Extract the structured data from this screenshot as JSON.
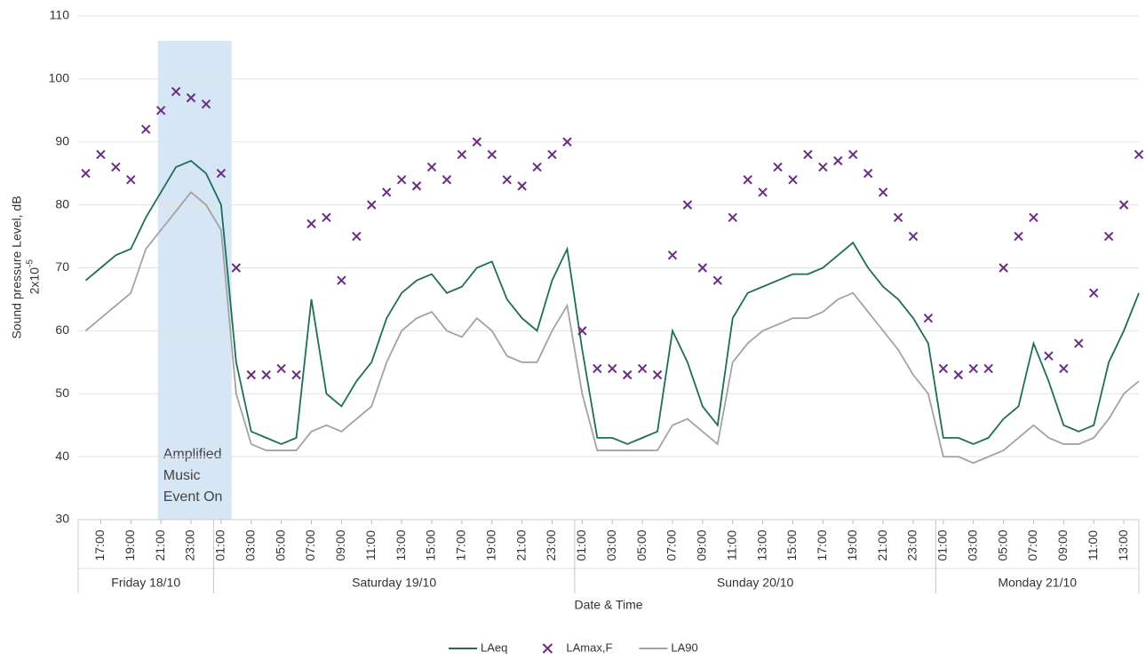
{
  "chart_data": {
    "type": "line",
    "x_label": "Date & Time",
    "y_label": "Sound pressure Level, dB",
    "y_label_unit": "2x10",
    "y_label_unit_exponent": "-5",
    "xlim": [
      15.5,
      86
    ],
    "ylim": [
      30,
      110
    ],
    "yticks": [
      30,
      40,
      50,
      60,
      70,
      80,
      90,
      100,
      110
    ],
    "grid": true,
    "xticks": [
      {
        "value": 17,
        "label": "17:00"
      },
      {
        "value": 19,
        "label": "19:00"
      },
      {
        "value": 21,
        "label": "21:00"
      },
      {
        "value": 23,
        "label": "23:00"
      },
      {
        "value": 25,
        "label": "01:00"
      },
      {
        "value": 27,
        "label": "03:00"
      },
      {
        "value": 29,
        "label": "05:00"
      },
      {
        "value": 31,
        "label": "07:00"
      },
      {
        "value": 33,
        "label": "09:00"
      },
      {
        "value": 35,
        "label": "11:00"
      },
      {
        "value": 37,
        "label": "13:00"
      },
      {
        "value": 39,
        "label": "15:00"
      },
      {
        "value": 41,
        "label": "17:00"
      },
      {
        "value": 43,
        "label": "19:00"
      },
      {
        "value": 45,
        "label": "21:00"
      },
      {
        "value": 47,
        "label": "23:00"
      },
      {
        "value": 49,
        "label": "01:00"
      },
      {
        "value": 51,
        "label": "03:00"
      },
      {
        "value": 53,
        "label": "05:00"
      },
      {
        "value": 55,
        "label": "07:00"
      },
      {
        "value": 57,
        "label": "09:00"
      },
      {
        "value": 59,
        "label": "11:00"
      },
      {
        "value": 61,
        "label": "13:00"
      },
      {
        "value": 63,
        "label": "15:00"
      },
      {
        "value": 65,
        "label": "17:00"
      },
      {
        "value": 67,
        "label": "19:00"
      },
      {
        "value": 69,
        "label": "21:00"
      },
      {
        "value": 71,
        "label": "23:00"
      },
      {
        "value": 73,
        "label": "01:00"
      },
      {
        "value": 75,
        "label": "03:00"
      },
      {
        "value": 77,
        "label": "05:00"
      },
      {
        "value": 79,
        "label": "07:00"
      },
      {
        "value": 81,
        "label": "09:00"
      },
      {
        "value": 83,
        "label": "11:00"
      },
      {
        "value": 85,
        "label": "13:00"
      }
    ],
    "days": [
      {
        "label": "Friday 18/10",
        "range": [
          15.5,
          24.5
        ]
      },
      {
        "label": "Saturday 19/10",
        "range": [
          24.5,
          48.5
        ]
      },
      {
        "label": "Sunday 20/10",
        "range": [
          48.5,
          72.5
        ]
      },
      {
        "label": "Monday 21/10",
        "range": [
          72.5,
          86
        ]
      }
    ],
    "shaded_region": {
      "range": [
        20.8,
        25.7
      ],
      "color": "#cfe2f3",
      "label": [
        "Amplified",
        "Music",
        "Event On"
      ]
    },
    "x": [
      16,
      17,
      18,
      19,
      20,
      21,
      22,
      23,
      24,
      25,
      26,
      27,
      28,
      29,
      30,
      31,
      32,
      33,
      34,
      35,
      36,
      37,
      38,
      39,
      40,
      41,
      42,
      43,
      44,
      45,
      46,
      47,
      48,
      49,
      50,
      51,
      52,
      53,
      54,
      55,
      56,
      57,
      58,
      59,
      60,
      61,
      62,
      63,
      64,
      65,
      66,
      67,
      68,
      69,
      70,
      71,
      72,
      73,
      74,
      75,
      76,
      77,
      78,
      79,
      80,
      81,
      82,
      83,
      84,
      85,
      86
    ],
    "series": [
      {
        "name": "LAeq",
        "type": "line",
        "color": "#1d6e56",
        "values": [
          68,
          70,
          72,
          73,
          78,
          82,
          86,
          87,
          85,
          80,
          55,
          44,
          43,
          42,
          43,
          65,
          50,
          48,
          52,
          55,
          62,
          66,
          68,
          69,
          66,
          67,
          70,
          71,
          65,
          62,
          60,
          68,
          73,
          57,
          43,
          43,
          42,
          43,
          44,
          60,
          55,
          48,
          45,
          62,
          66,
          67,
          68,
          69,
          69,
          70,
          72,
          74,
          70,
          67,
          65,
          62,
          58,
          43,
          43,
          42,
          43,
          46,
          48,
          58,
          52,
          45,
          44,
          45,
          55,
          60,
          66
        ]
      },
      {
        "name": "LAmax,F",
        "type": "scatter",
        "color": "#6a2c85",
        "values": [
          85,
          88,
          86,
          84,
          92,
          95,
          98,
          97,
          96,
          85,
          70,
          53,
          53,
          54,
          53,
          77,
          78,
          68,
          75,
          80,
          82,
          84,
          83,
          86,
          84,
          88,
          90,
          88,
          84,
          83,
          86,
          88,
          90,
          60,
          54,
          54,
          53,
          54,
          53,
          72,
          80,
          70,
          68,
          78,
          84,
          82,
          86,
          84,
          88,
          86,
          87,
          88,
          85,
          82,
          78,
          75,
          62,
          54,
          53,
          54,
          54,
          70,
          75,
          78,
          56,
          54,
          58,
          66,
          75,
          80,
          88
        ]
      },
      {
        "name": "LA90",
        "type": "line",
        "color": "#a3a3a3",
        "values": [
          60,
          62,
          64,
          66,
          73,
          76,
          79,
          82,
          80,
          76,
          50,
          42,
          41,
          41,
          41,
          44,
          45,
          44,
          46,
          48,
          55,
          60,
          62,
          63,
          60,
          59,
          62,
          60,
          56,
          55,
          55,
          60,
          64,
          50,
          41,
          41,
          41,
          41,
          41,
          45,
          46,
          44,
          42,
          55,
          58,
          60,
          61,
          62,
          62,
          63,
          65,
          66,
          63,
          60,
          57,
          53,
          50,
          40,
          40,
          39,
          40,
          41,
          43,
          45,
          43,
          42,
          42,
          43,
          46,
          50,
          52
        ]
      }
    ]
  }
}
